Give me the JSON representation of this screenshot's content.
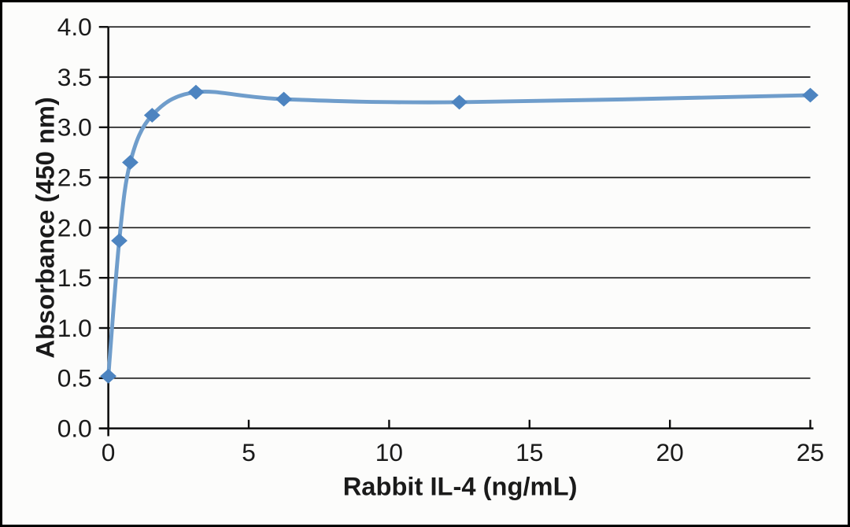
{
  "figure": {
    "background_color": "#fcfcfb",
    "border_color": "#000000"
  },
  "chart_data": {
    "type": "line",
    "title": "",
    "xlabel": "Rabbit IL-4 (ng/mL)",
    "ylabel": "Absorbance (450 nm)",
    "x": [
      0,
      0.39,
      0.78,
      1.56,
      3.12,
      6.25,
      12.5,
      25
    ],
    "y": [
      0.52,
      1.87,
      2.65,
      3.12,
      3.35,
      3.28,
      3.25,
      3.32
    ],
    "xlim": [
      0,
      25
    ],
    "ylim": [
      0.0,
      4.0
    ],
    "x_ticks": [
      0,
      5,
      10,
      15,
      20,
      25
    ],
    "x_tick_labels": [
      "0",
      "5",
      "10",
      "15",
      "20",
      "25"
    ],
    "y_ticks": [
      0,
      0.5,
      1,
      1.5,
      2,
      2.5,
      3,
      3.5,
      4
    ],
    "y_tick_labels": [
      "0.0",
      "0.5",
      "1.0",
      "1.5",
      "2.0",
      "2.5",
      "3.0",
      "3.5",
      "4.0"
    ],
    "grid": "horizontal",
    "legend": "none",
    "marker": "diamond",
    "line_smooth": true,
    "colors": {
      "line": "#6f9dcb",
      "marker": "#4d84c0",
      "axis": "#0d0d0d",
      "grid": "#1a1a1a",
      "text": "#1a1a1a"
    }
  }
}
